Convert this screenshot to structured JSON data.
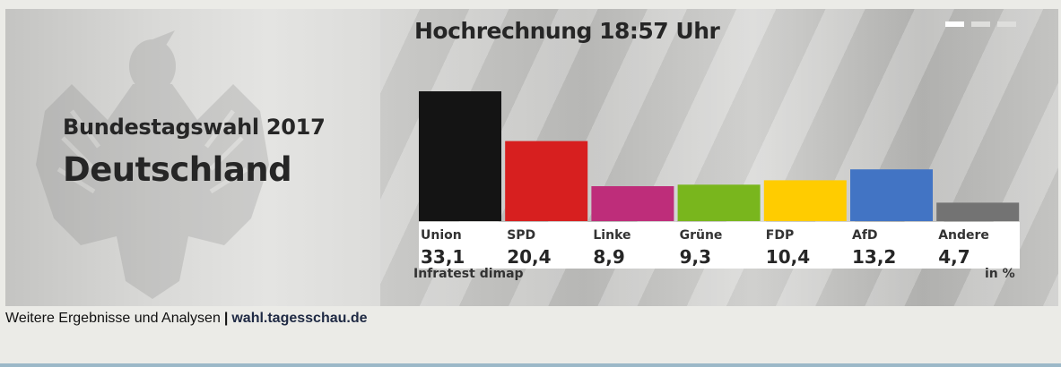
{
  "header": {
    "subtitle": "Bundestagswahl 2017",
    "title": "Deutschland"
  },
  "chart_data": {
    "type": "bar",
    "title": "Hochrechnung 18:57 Uhr",
    "categories": [
      "Union",
      "SPD",
      "Linke",
      "Grüne",
      "FDP",
      "AfD",
      "Andere"
    ],
    "values": [
      33.1,
      20.4,
      8.9,
      9.3,
      10.4,
      13.2,
      4.7
    ],
    "value_labels": [
      "33,1",
      "20,4",
      "8,9",
      "9,3",
      "10,4",
      "13,2",
      "4,7"
    ],
    "colors": [
      "#141414",
      "#d71f1f",
      "#be2d7a",
      "#79b61d",
      "#ffcc00",
      "#4274c4",
      "#737373"
    ],
    "source": "Infratest dimap",
    "unit": "in %",
    "xlabel": "",
    "ylabel": ""
  },
  "pager": {
    "count": 3,
    "active": 0
  },
  "footer": {
    "text": "Weitere Ergebnisse und Analysen",
    "separator": "|",
    "link": "wahl.tagesschau.de"
  }
}
